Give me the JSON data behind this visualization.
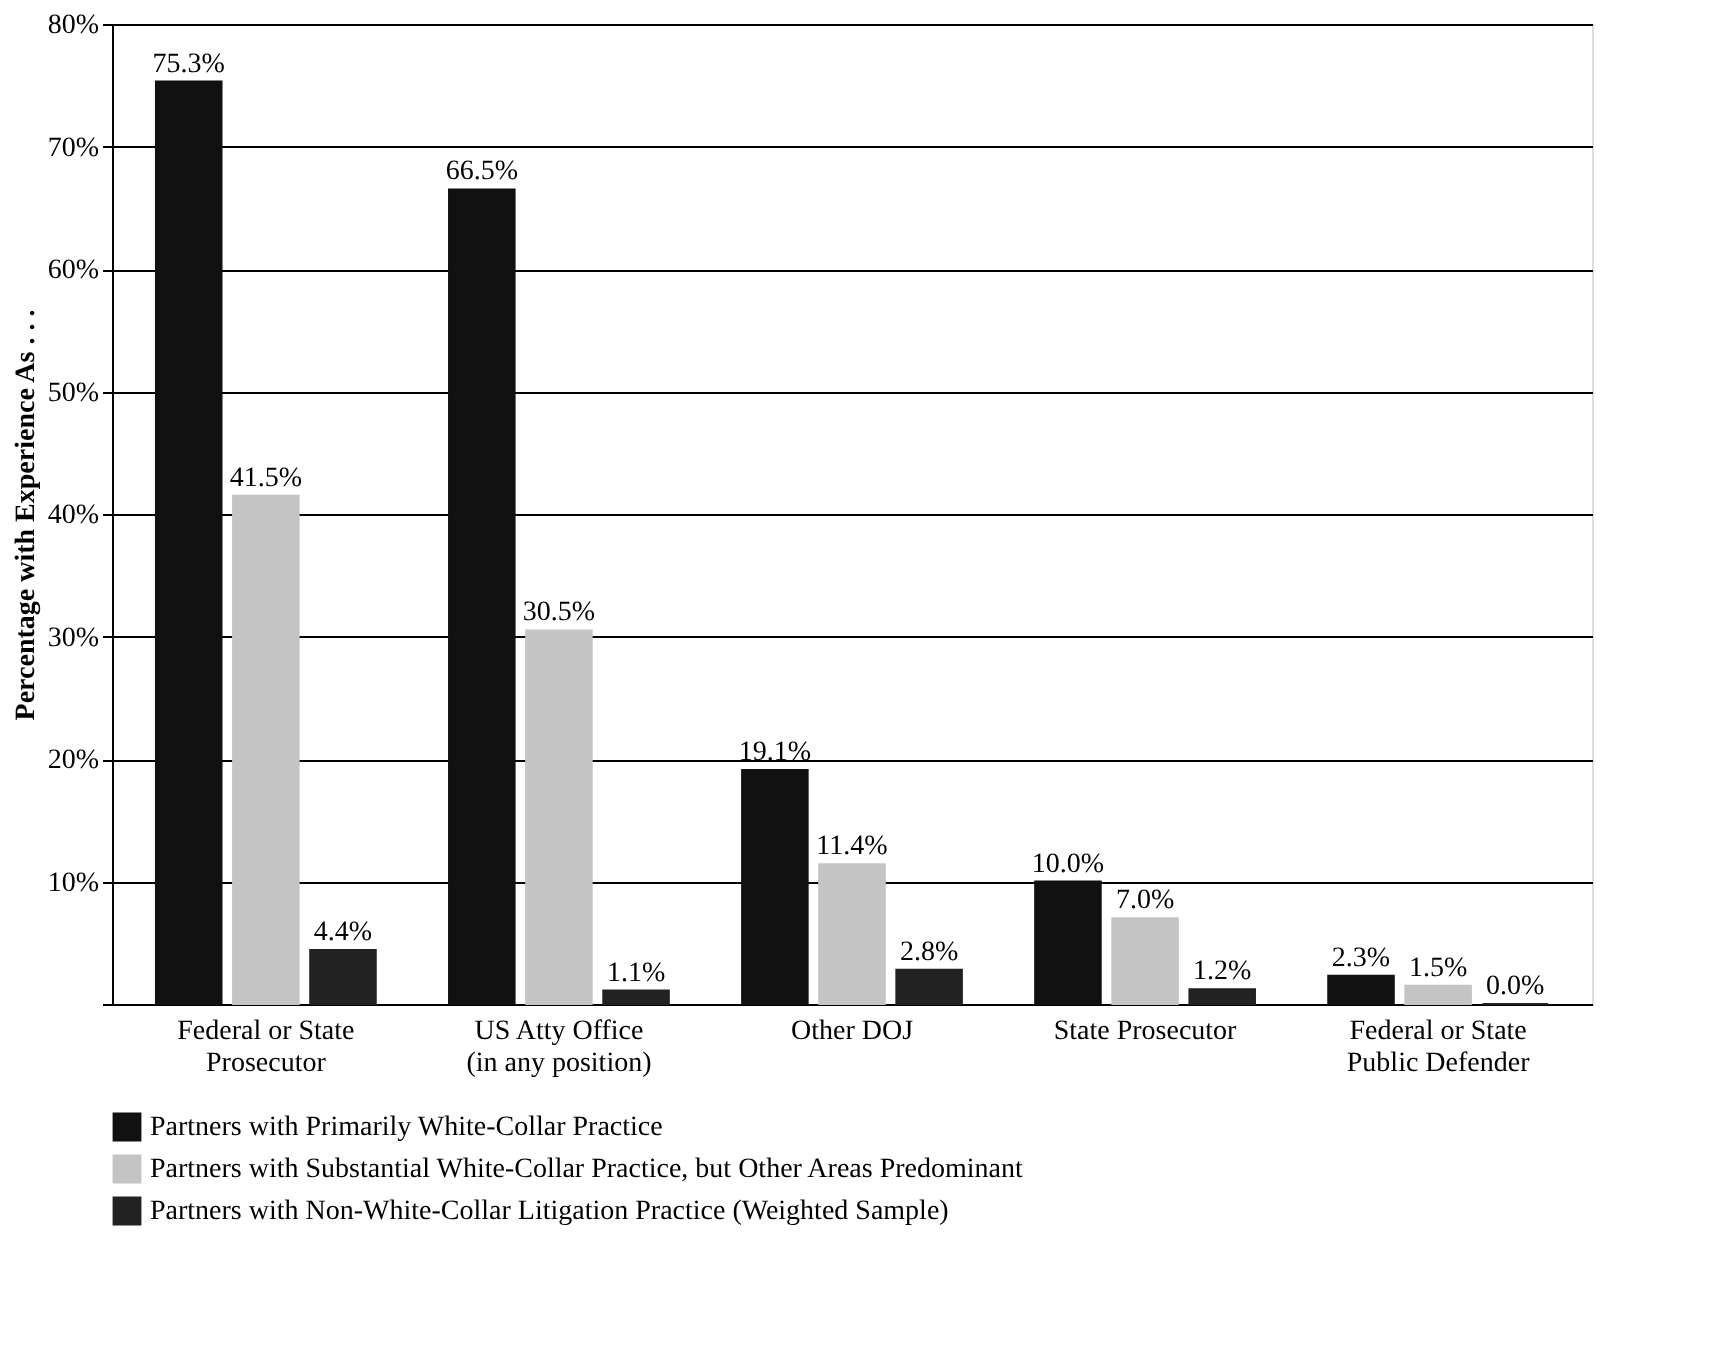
{
  "chart_data": {
    "type": "bar",
    "ylabel": "Percentage with Experience As . . .",
    "categories": [
      "Federal or State Prosecutor",
      "US Atty Office (in any position)",
      "Other DOJ",
      "State Prosecutor",
      "Federal or State Public Defender"
    ],
    "series": [
      {
        "name": "Partners with Primarily White-Collar Practice",
        "color": "#111111",
        "values": [
          75.3,
          66.5,
          19.1,
          10.0,
          2.3
        ],
        "value_labels": [
          "75.3%",
          "66.5%",
          "19.1%",
          "10.0%",
          "2.3%"
        ]
      },
      {
        "name": "Partners with Substantial White-Collar Practice, but Other Areas Predominant",
        "color": "#c4c4c4",
        "values": [
          41.5,
          30.5,
          11.4,
          7.0,
          1.5
        ],
        "value_labels": [
          "41.5%",
          "30.5%",
          "11.4%",
          "7.0%",
          "1.5%"
        ]
      },
      {
        "name": "Partners with Non-White-Collar Litigation Practice (Weighted Sample)",
        "color": "#222222",
        "values": [
          4.4,
          1.1,
          2.8,
          1.2,
          0.0
        ],
        "value_labels": [
          "4.4%",
          "1.1%",
          "2.8%",
          "1.2%",
          "0.0%"
        ]
      }
    ],
    "ylim": [
      0,
      80
    ],
    "yticks": [
      {
        "value": 0,
        "label": null
      },
      {
        "value": 10,
        "label": "10%"
      },
      {
        "value": 20,
        "label": "20%"
      },
      {
        "value": 30,
        "label": "30%"
      },
      {
        "value": 40,
        "label": "40%"
      },
      {
        "value": 50,
        "label": "50%"
      },
      {
        "value": 60,
        "label": "60%"
      },
      {
        "value": 70,
        "label": "70%"
      },
      {
        "value": 80,
        "label": "80%"
      }
    ],
    "grid": "y",
    "legend": "bottom"
  }
}
